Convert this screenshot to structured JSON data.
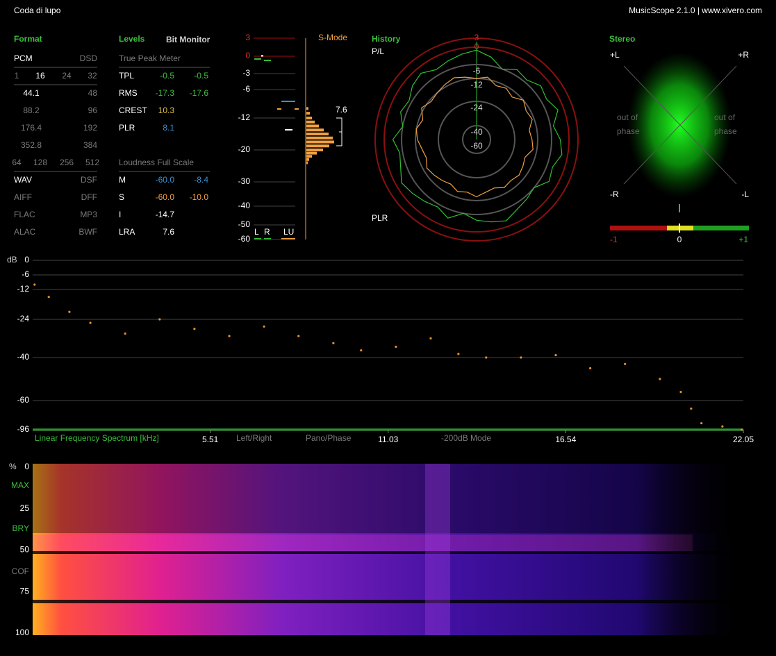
{
  "header": {
    "title": "Coda di lupo",
    "app": "MusicScope 2.1.0 | www.xivero.com"
  },
  "format": {
    "title": "Format",
    "rows": [
      [
        "PCM",
        "DSD"
      ],
      [
        "1",
        "16",
        "24",
        "32"
      ],
      [
        "44.1",
        "48"
      ],
      [
        "88.2",
        "96"
      ],
      [
        "176.4",
        "192"
      ],
      [
        "352.8",
        "384"
      ],
      [
        "64",
        "128",
        "256",
        "512"
      ],
      [
        "WAV",
        "DSF"
      ],
      [
        "AIFF",
        "DFF"
      ],
      [
        "FLAC",
        "MP3"
      ],
      [
        "ALAC",
        "BWF"
      ]
    ]
  },
  "levels": {
    "title": "Levels",
    "tab": "Bit Monitor",
    "peak_header": "True Peak Meter",
    "peak_rows": [
      {
        "label": "TPL",
        "values": [
          "-0.5",
          "-0.5"
        ]
      },
      {
        "label": "RMS",
        "values": [
          "-17.3",
          "-17.6"
        ]
      },
      {
        "label": "CREST",
        "values": [
          "10.3"
        ]
      },
      {
        "label": "PLR",
        "values": [
          "8.1"
        ]
      }
    ],
    "loudness_header": "Loudness Full Scale",
    "loudness_rows": [
      {
        "label": "M",
        "values": [
          "-60.0",
          "-8.4"
        ]
      },
      {
        "label": "S",
        "values": [
          "-60.0",
          "-10.0"
        ]
      },
      {
        "label": "I",
        "values": [
          "-14.7"
        ]
      },
      {
        "label": "LRA",
        "values": [
          "7.6"
        ]
      }
    ]
  },
  "meter": {
    "mode": "S-Mode",
    "ticks": [
      3,
      0,
      -3,
      -6,
      -12,
      -20,
      -30,
      -40,
      -50,
      -60
    ],
    "lra_label": "7.6",
    "channels": [
      "L",
      "R",
      "LU"
    ],
    "histogram": {
      "levels": [
        -10,
        -11,
        -12,
        -13,
        -14,
        -15,
        -16,
        -17,
        -18,
        -19,
        -20,
        -21,
        -22,
        -23,
        -24
      ],
      "counts": [
        3,
        5,
        8,
        12,
        18,
        25,
        32,
        38,
        40,
        33,
        24,
        15,
        8,
        4,
        2
      ]
    }
  },
  "history": {
    "title": "History",
    "ticks": [
      3,
      0,
      -6,
      -12,
      -24,
      -40,
      -60
    ],
    "series": [
      {
        "name": "P/L",
        "color": "#2fbf2f",
        "values": [
          -1,
          -3,
          -6,
          -4,
          -5,
          -3,
          -4,
          -2,
          -5,
          -3,
          -2,
          -4,
          -3,
          -6,
          -5,
          -4,
          -2,
          -3,
          -4,
          -6,
          -3,
          -5,
          -4,
          -3,
          -2,
          -4,
          -5,
          -3,
          -6,
          -4,
          -5,
          -3,
          -2,
          -4,
          -3,
          -2
        ]
      },
      {
        "name": "PLR",
        "color": "#f0a040",
        "values": [
          -12,
          -11,
          -14,
          -13,
          -15,
          -12,
          -14,
          -13,
          -16,
          -15,
          -14,
          -17,
          -16,
          -15,
          -16,
          -15,
          -17,
          -16,
          -14,
          -16,
          -15,
          -17,
          -16,
          -15,
          -14,
          -16,
          -15,
          -13,
          -12,
          -14,
          -11,
          -13,
          -12,
          -11,
          -10,
          -11
        ]
      }
    ]
  },
  "stereo": {
    "title": "Stereo",
    "corners": [
      "+L",
      "+R",
      "-R",
      "-L"
    ],
    "out_of_phase": [
      "out of",
      "phase"
    ],
    "scale": [
      "-1",
      "0",
      "+1"
    ]
  },
  "spectrum": {
    "type": "scatter",
    "title": "Linear Frequency Spectrum [kHz]",
    "y_unit": "dB",
    "buttons": [
      "Left/Right",
      "Pano/Phase",
      "-200dB Mode"
    ],
    "xlim": [
      0,
      22.05
    ],
    "xticks": [
      5.51,
      11.03,
      16.54,
      22.05
    ],
    "yticks": [
      0,
      -6,
      -12,
      -24,
      -40,
      -60,
      -96
    ],
    "color": "#e8902a",
    "x": [
      0.06,
      0.5,
      1.14,
      1.79,
      2.87,
      3.94,
      5.02,
      6.1,
      7.18,
      8.25,
      9.33,
      10.19,
      11.27,
      12.35,
      13.21,
      14.07,
      15.15,
      16.23,
      17.3,
      18.38,
      19.46,
      20.11,
      20.43,
      20.75,
      21.4,
      22.0
    ],
    "values": [
      -10,
      -15,
      -21,
      -25.5,
      -30,
      -24,
      -28,
      -31,
      -27,
      -31,
      -34,
      -37,
      -35.5,
      -32,
      -38.5,
      -40,
      -40,
      -39,
      -45,
      -43,
      -50,
      -56,
      -70,
      -88,
      -92,
      -96
    ]
  },
  "spectrogram": {
    "unit": "%",
    "yticks": [
      0,
      25,
      50,
      75,
      100
    ],
    "markers": [
      "MAX",
      "BRY",
      "COF"
    ]
  }
}
